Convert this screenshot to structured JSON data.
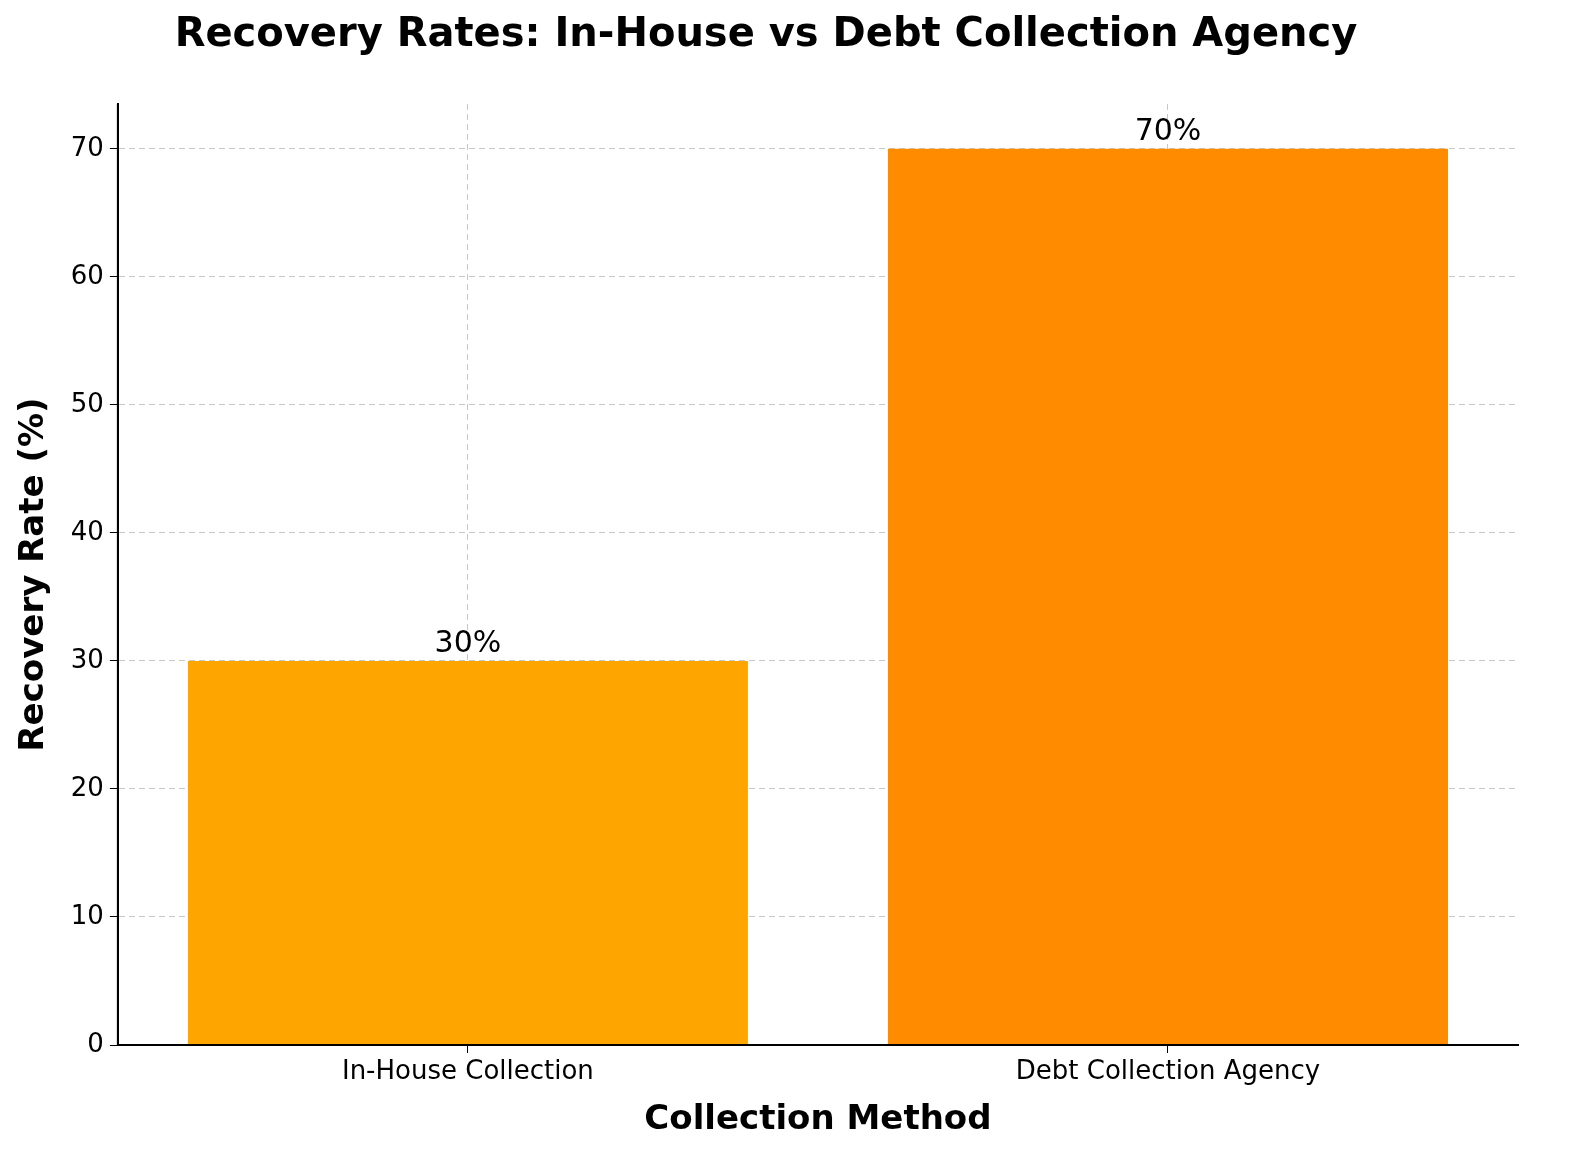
{
  "chart_data": {
    "type": "bar",
    "title": "Recovery Rates: In-House vs Debt Collection Agency",
    "x_label": "Collection Method",
    "y_label": "Recovery Rate (%)",
    "categories": [
      "In-House Collection",
      "Debt Collection Agency"
    ],
    "values": [
      30,
      70
    ],
    "value_labels": [
      "30%",
      "70%"
    ],
    "data_labels": true,
    "colors": [
      "#ffa500",
      "#ff8c00"
    ],
    "ylim": [
      0,
      73.5
    ],
    "yticks": [
      0,
      10,
      20,
      30,
      40,
      50,
      60,
      70
    ],
    "grid": true
  }
}
